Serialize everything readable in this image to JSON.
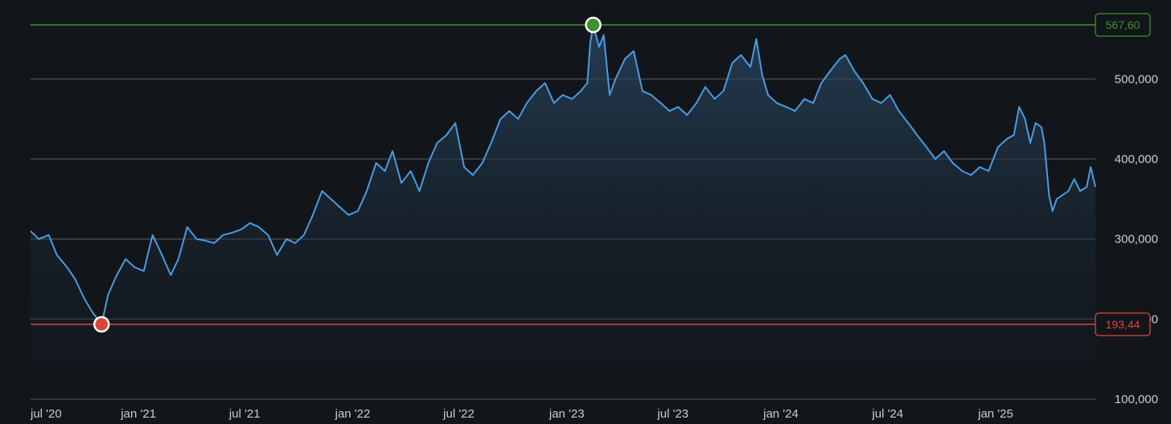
{
  "chart_data": {
    "type": "area",
    "title": "",
    "xlabel": "",
    "ylabel": "",
    "x_ticks": [
      "jul '20",
      "jan '21",
      "jul '21",
      "jan '22",
      "jul '22",
      "jan '23",
      "jul '23",
      "jan '24",
      "jul '24",
      "jan '25"
    ],
    "y_ticks": [
      "100,000",
      "200,000",
      "300,000",
      "400,000",
      "500,000"
    ],
    "ylim": [
      100,
      567.6
    ],
    "xlim": [
      "2020-07-01",
      "2025-06-20"
    ],
    "grid": true,
    "high": {
      "date": "2023-02-15",
      "value": 567.6,
      "label": "567,60",
      "color": "#3f8f2a"
    },
    "low": {
      "date": "2020-10-30",
      "value": 193.44,
      "label": "193,44",
      "color": "#d9453a"
    },
    "colors": {
      "line": "#4a9be0",
      "grid": "#4a4f55",
      "background": "#12161b"
    },
    "series": [
      {
        "points": [
          [
            "2020-07-01",
            310
          ],
          [
            "2020-07-15",
            300
          ],
          [
            "2020-08-01",
            305
          ],
          [
            "2020-08-15",
            280
          ],
          [
            "2020-09-01",
            265
          ],
          [
            "2020-09-15",
            250
          ],
          [
            "2020-10-01",
            225
          ],
          [
            "2020-10-15",
            208
          ],
          [
            "2020-10-30",
            193.44
          ],
          [
            "2020-11-10",
            230
          ],
          [
            "2020-11-25",
            255
          ],
          [
            "2020-12-10",
            275
          ],
          [
            "2020-12-25",
            265
          ],
          [
            "2021-01-10",
            260
          ],
          [
            "2021-01-25",
            305
          ],
          [
            "2021-02-10",
            280
          ],
          [
            "2021-02-25",
            255
          ],
          [
            "2021-03-10",
            275
          ],
          [
            "2021-03-25",
            315
          ],
          [
            "2021-04-10",
            300
          ],
          [
            "2021-04-25",
            298
          ],
          [
            "2021-05-10",
            295
          ],
          [
            "2021-05-25",
            305
          ],
          [
            "2021-06-10",
            308
          ],
          [
            "2021-06-25",
            312
          ],
          [
            "2021-07-10",
            320
          ],
          [
            "2021-07-25",
            315
          ],
          [
            "2021-08-10",
            305
          ],
          [
            "2021-08-25",
            280
          ],
          [
            "2021-09-10",
            300
          ],
          [
            "2021-09-25",
            295
          ],
          [
            "2021-10-10",
            305
          ],
          [
            "2021-10-25",
            330
          ],
          [
            "2021-11-10",
            360
          ],
          [
            "2021-11-25",
            350
          ],
          [
            "2021-12-10",
            340
          ],
          [
            "2021-12-25",
            330
          ],
          [
            "2022-01-10",
            335
          ],
          [
            "2022-01-25",
            360
          ],
          [
            "2022-02-10",
            395
          ],
          [
            "2022-02-25",
            385
          ],
          [
            "2022-03-10",
            410
          ],
          [
            "2022-03-25",
            370
          ],
          [
            "2022-04-10",
            385
          ],
          [
            "2022-04-25",
            360
          ],
          [
            "2022-05-10",
            395
          ],
          [
            "2022-05-25",
            420
          ],
          [
            "2022-06-10",
            430
          ],
          [
            "2022-06-25",
            445
          ],
          [
            "2022-07-10",
            390
          ],
          [
            "2022-07-25",
            380
          ],
          [
            "2022-08-10",
            395
          ],
          [
            "2022-08-25",
            420
          ],
          [
            "2022-09-10",
            450
          ],
          [
            "2022-09-25",
            460
          ],
          [
            "2022-10-10",
            450
          ],
          [
            "2022-10-25",
            470
          ],
          [
            "2022-11-10",
            485
          ],
          [
            "2022-11-25",
            495
          ],
          [
            "2022-12-10",
            470
          ],
          [
            "2022-12-25",
            480
          ],
          [
            "2023-01-10",
            475
          ],
          [
            "2023-01-25",
            485
          ],
          [
            "2023-02-05",
            495
          ],
          [
            "2023-02-10",
            545
          ],
          [
            "2023-02-15",
            567.6
          ],
          [
            "2023-02-25",
            540
          ],
          [
            "2023-03-05",
            555
          ],
          [
            "2023-03-15",
            480
          ],
          [
            "2023-03-25",
            500
          ],
          [
            "2023-04-10",
            525
          ],
          [
            "2023-04-25",
            535
          ],
          [
            "2023-05-10",
            485
          ],
          [
            "2023-05-25",
            480
          ],
          [
            "2023-06-10",
            470
          ],
          [
            "2023-06-25",
            460
          ],
          [
            "2023-07-10",
            465
          ],
          [
            "2023-07-25",
            455
          ],
          [
            "2023-08-10",
            470
          ],
          [
            "2023-08-25",
            490
          ],
          [
            "2023-09-10",
            475
          ],
          [
            "2023-09-25",
            485
          ],
          [
            "2023-10-10",
            520
          ],
          [
            "2023-10-25",
            530
          ],
          [
            "2023-11-10",
            515
          ],
          [
            "2023-11-20",
            550
          ],
          [
            "2023-11-30",
            505
          ],
          [
            "2023-12-10",
            480
          ],
          [
            "2023-12-25",
            470
          ],
          [
            "2024-01-10",
            465
          ],
          [
            "2024-01-25",
            460
          ],
          [
            "2024-02-10",
            475
          ],
          [
            "2024-02-25",
            470
          ],
          [
            "2024-03-10",
            495
          ],
          [
            "2024-03-25",
            510
          ],
          [
            "2024-04-10",
            525
          ],
          [
            "2024-04-20",
            530
          ],
          [
            "2024-05-05",
            510
          ],
          [
            "2024-05-20",
            495
          ],
          [
            "2024-06-05",
            475
          ],
          [
            "2024-06-20",
            470
          ],
          [
            "2024-07-05",
            480
          ],
          [
            "2024-07-20",
            460
          ],
          [
            "2024-08-05",
            445
          ],
          [
            "2024-08-20",
            430
          ],
          [
            "2024-09-05",
            415
          ],
          [
            "2024-09-20",
            400
          ],
          [
            "2024-10-05",
            410
          ],
          [
            "2024-10-20",
            395
          ],
          [
            "2024-11-05",
            385
          ],
          [
            "2024-11-20",
            380
          ],
          [
            "2024-12-05",
            390
          ],
          [
            "2024-12-20",
            385
          ],
          [
            "2025-01-05",
            415
          ],
          [
            "2025-01-20",
            425
          ],
          [
            "2025-02-01",
            430
          ],
          [
            "2025-02-10",
            465
          ],
          [
            "2025-02-20",
            450
          ],
          [
            "2025-03-01",
            420
          ],
          [
            "2025-03-10",
            445
          ],
          [
            "2025-03-20",
            440
          ],
          [
            "2025-03-25",
            420
          ],
          [
            "2025-04-02",
            355
          ],
          [
            "2025-04-08",
            335
          ],
          [
            "2025-04-15",
            350
          ],
          [
            "2025-04-25",
            355
          ],
          [
            "2025-05-05",
            360
          ],
          [
            "2025-05-15",
            375
          ],
          [
            "2025-05-25",
            360
          ],
          [
            "2025-06-05",
            365
          ],
          [
            "2025-06-12",
            390
          ],
          [
            "2025-06-20",
            365
          ]
        ]
      }
    ]
  }
}
